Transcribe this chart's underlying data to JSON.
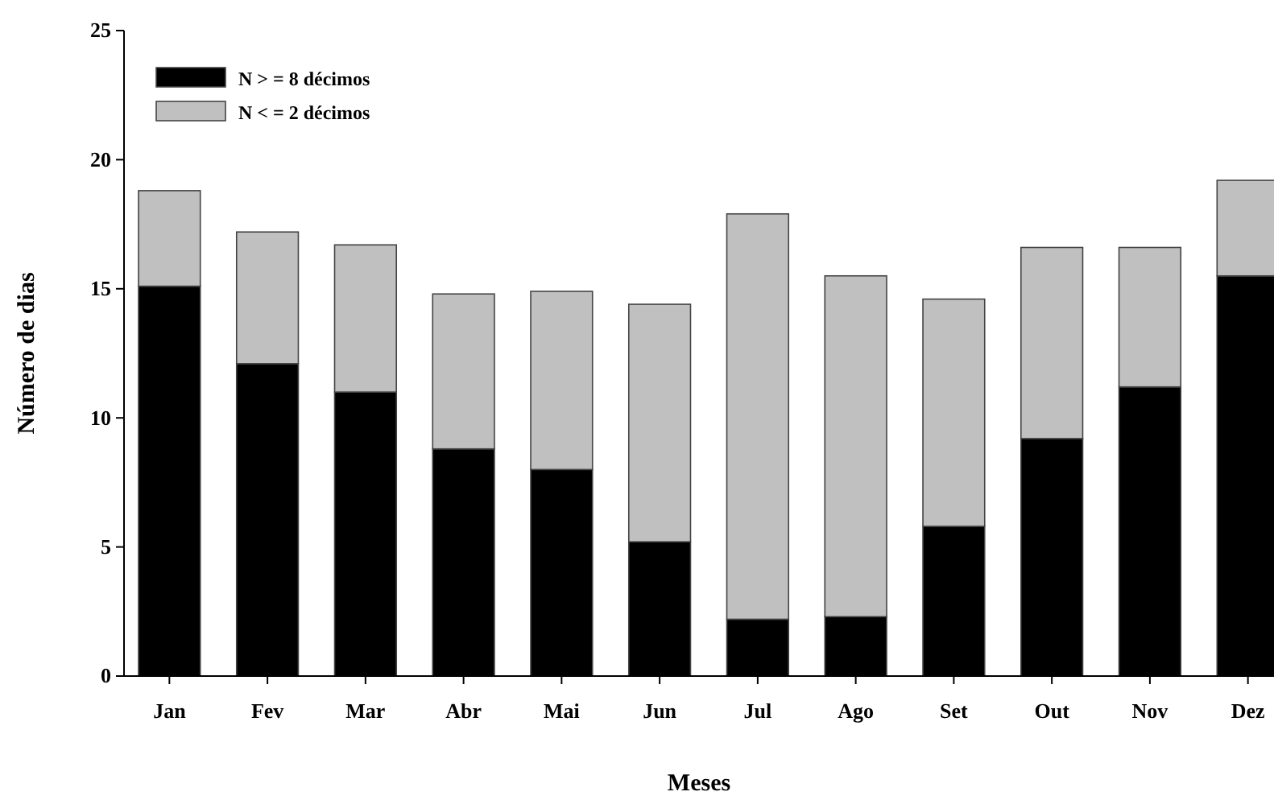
{
  "chart_data": {
    "type": "bar",
    "stacked": true,
    "xlabel": "Meses",
    "ylabel": "Número de dias",
    "categories": [
      "Jan",
      "Fev",
      "Mar",
      "Abr",
      "Mai",
      "Jun",
      "Jul",
      "Ago",
      "Set",
      "Out",
      "Nov",
      "Dez"
    ],
    "series": [
      {
        "name": "N > = 8 décimos",
        "color": "#000000",
        "values": [
          15.1,
          12.1,
          11.0,
          8.8,
          8.0,
          5.2,
          2.2,
          2.3,
          5.8,
          9.2,
          11.2,
          15.5
        ]
      },
      {
        "name": "N < = 2 décimos",
        "color": "#c0c0c0",
        "values": [
          3.7,
          5.1,
          5.7,
          6.0,
          6.9,
          9.2,
          15.7,
          13.2,
          8.8,
          7.4,
          5.4,
          3.7
        ]
      }
    ],
    "ylim": [
      0,
      25
    ],
    "yticks": [
      0,
      5,
      10,
      15,
      20,
      25
    ],
    "grid": false,
    "legend": "top left"
  }
}
